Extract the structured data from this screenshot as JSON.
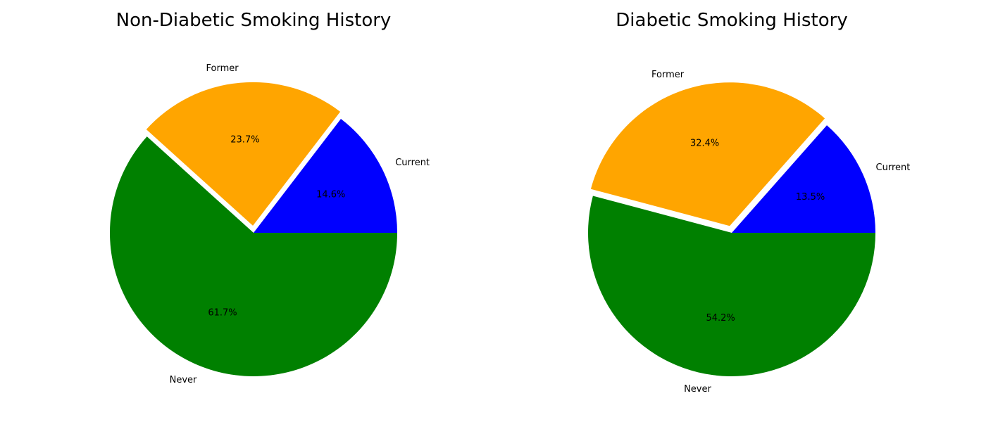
{
  "chart_data": [
    {
      "type": "pie",
      "title": "Non-Diabetic Smoking History",
      "slices": [
        {
          "label": "Current",
          "value": 14.6,
          "display": "14.6%",
          "color": "#0000ff",
          "explode": 0
        },
        {
          "label": "Former",
          "value": 23.7,
          "display": "23.7%",
          "color": "#ffa500",
          "explode": 0.05
        },
        {
          "label": "Never",
          "value": 61.7,
          "display": "61.7%",
          "color": "#008000",
          "explode": 0
        }
      ]
    },
    {
      "type": "pie",
      "title": "Diabetic Smoking History",
      "slices": [
        {
          "label": "Current",
          "value": 13.5,
          "display": "13.5%",
          "color": "#0000ff",
          "explode": 0
        },
        {
          "label": "Former",
          "value": 32.4,
          "display": "32.4%",
          "color": "#ffa500",
          "explode": 0.05
        },
        {
          "label": "Never",
          "value": 54.2,
          "display": "54.2%",
          "color": "#008000",
          "explode": 0
        }
      ]
    }
  ]
}
